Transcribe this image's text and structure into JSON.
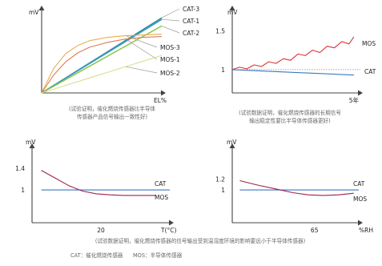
{
  "chart_data": [
    {
      "type": "line",
      "title": "",
      "ylabel": "mV",
      "xlabel": "EL%",
      "xlim": [
        0,
        100
      ],
      "ylim": [
        0,
        100
      ],
      "series": [
        {
          "name": "CAT-3",
          "x": [
            0,
            100
          ],
          "y": [
            0,
            92
          ],
          "color": "#2a8a8a"
        },
        {
          "name": "CAT-1",
          "x": [
            0,
            100
          ],
          "y": [
            0,
            90
          ],
          "color": "#3a9ad0"
        },
        {
          "name": "CAT-2",
          "x": [
            0,
            100
          ],
          "y": [
            0,
            82
          ],
          "color": "#8ac440"
        },
        {
          "name": "MOS-3",
          "x": [
            0,
            10,
            20,
            30,
            40,
            55,
            70,
            85,
            100
          ],
          "y": [
            0,
            30,
            48,
            58,
            64,
            68,
            70,
            71,
            72
          ],
          "color": "#e8b050"
        },
        {
          "name": "MOS-1",
          "x": [
            0,
            10,
            20,
            30,
            40,
            55,
            70,
            85,
            100
          ],
          "y": [
            0,
            22,
            38,
            49,
            56,
            62,
            66,
            68,
            69
          ],
          "color": "#e27a58"
        },
        {
          "name": "MOS-2",
          "x": [
            0,
            100
          ],
          "y": [
            0,
            46
          ],
          "color": "#dddd90"
        }
      ],
      "caption": [
        "(试验证明，催化燃烧传感器比半导体",
        "传感器产品信号输出一致性好)"
      ]
    },
    {
      "type": "line",
      "title": "",
      "ylabel": "mV",
      "xlabel": "",
      "x_tick_labels": [
        "5年"
      ],
      "y_tick_labels": [
        "1.5",
        "1"
      ],
      "xlim": [
        0,
        5.2
      ],
      "ylim": [
        0.7,
        1.75
      ],
      "series": [
        {
          "name": "MOS",
          "x": [
            0,
            0.3,
            0.6,
            0.9,
            1.2,
            1.5,
            1.8,
            2.1,
            2.4,
            2.7,
            3.0,
            3.3,
            3.6,
            3.9,
            4.2,
            4.5,
            4.8,
            5.0
          ],
          "y": [
            1.0,
            1.03,
            1.01,
            1.06,
            1.04,
            1.1,
            1.08,
            1.14,
            1.12,
            1.2,
            1.18,
            1.25,
            1.22,
            1.3,
            1.28,
            1.36,
            1.33,
            1.42
          ],
          "color": "#d8333a"
        },
        {
          "name": "CAT",
          "x": [
            0,
            5.0
          ],
          "y": [
            1.0,
            0.93
          ],
          "color": "#3a78c0"
        }
      ],
      "reference_y": 1.0,
      "caption": [
        "(试验数据证明，催化燃烧传感器的长期信号",
        "输出稳定性要比半导体传感器更好)"
      ]
    },
    {
      "type": "line",
      "title": "",
      "ylabel": "mV",
      "xlabel": "T(°C)",
      "x_tick_labels": [
        "20"
      ],
      "y_tick_labels": [
        "1.4",
        "1"
      ],
      "xlim": [
        -10,
        50
      ],
      "ylim": [
        0.4,
        1.75
      ],
      "series": [
        {
          "name": "CAT",
          "x": [
            -6,
            50
          ],
          "y": [
            1.0,
            1.0
          ],
          "color": "#3a78c0"
        },
        {
          "name": "MOS",
          "x": [
            -6,
            0,
            6,
            12,
            18,
            24,
            30,
            36,
            44
          ],
          "y": [
            1.36,
            1.22,
            1.08,
            0.98,
            0.93,
            0.91,
            0.9,
            0.9,
            0.9
          ],
          "color": "#a02050"
        }
      ]
    },
    {
      "type": "line",
      "title": "",
      "ylabel": "mV",
      "xlabel": "%RH",
      "x_tick_labels": [
        "65"
      ],
      "y_tick_labels": [
        "1.2",
        "1"
      ],
      "xlim": [
        0,
        100
      ],
      "ylim": [
        0.4,
        1.75
      ],
      "series": [
        {
          "name": "CAT",
          "x": [
            6,
            100
          ],
          "y": [
            1.0,
            1.0
          ],
          "color": "#3a78c0"
        },
        {
          "name": "MOS",
          "x": [
            6,
            20,
            34,
            48,
            60,
            72,
            84,
            96
          ],
          "y": [
            1.17,
            1.09,
            1.02,
            0.95,
            0.91,
            0.9,
            0.91,
            0.94
          ],
          "color": "#a02050"
        }
      ]
    }
  ],
  "bottom_caption": "(试验数据证明，催化燃烧传感器的信号输出受到温湿度环境的影响要远小于半导体传感器)",
  "legend_note": "CAT：催化燃烧传感器      MOS：半导体传感器"
}
